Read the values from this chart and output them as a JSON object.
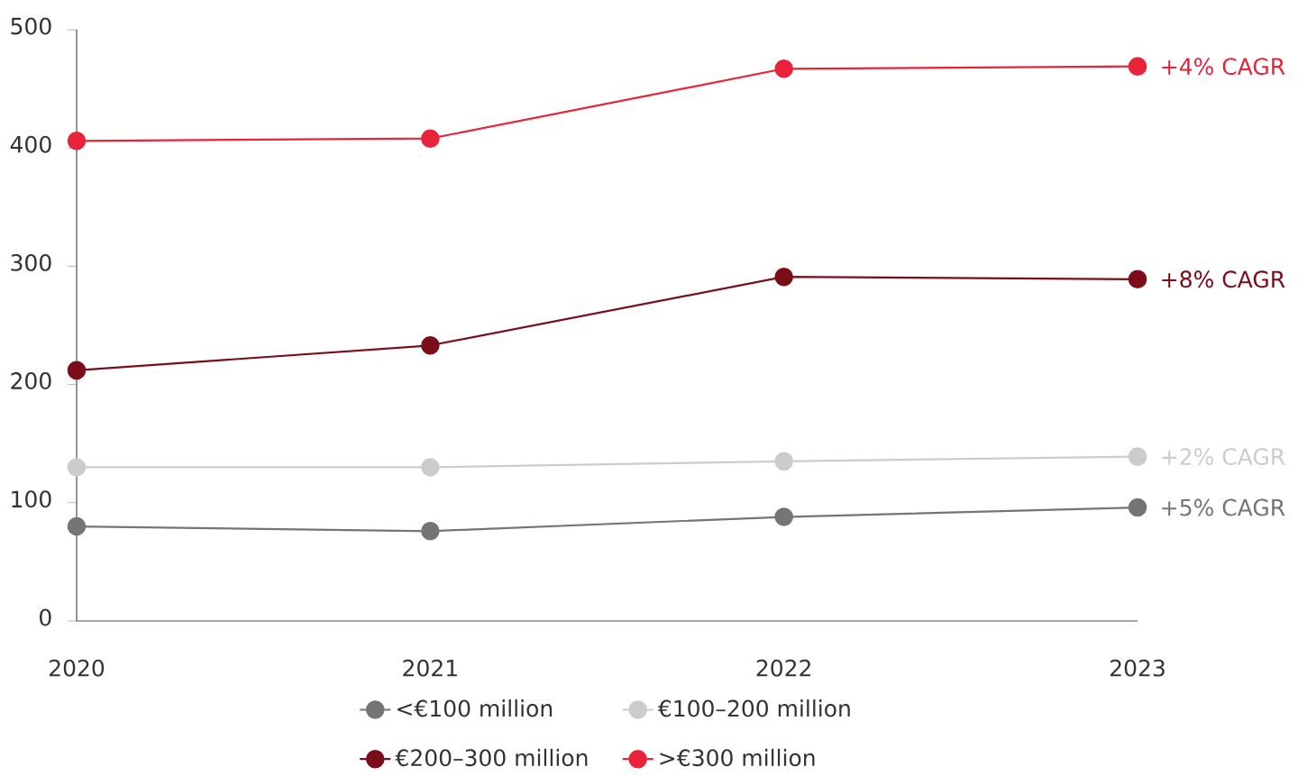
{
  "chart_data": {
    "type": "line",
    "categories": [
      "2020",
      "2021",
      "2022",
      "2023"
    ],
    "series": [
      {
        "name": "<€100 million",
        "color": "#757575",
        "values": [
          80,
          76,
          88,
          96
        ]
      },
      {
        "name": "€100–200 million",
        "color": "#cccccc",
        "values": [
          130,
          130,
          135,
          139
        ]
      },
      {
        "name": "€200–300 million",
        "color": "#7b0d1a",
        "values": [
          212,
          233,
          291,
          289
        ]
      },
      {
        "name": ">€300 million",
        "color": "#e8233a",
        "values": [
          406,
          408,
          467,
          469
        ]
      }
    ],
    "ylim": [
      0,
      500
    ],
    "yticks": [
      0,
      100,
      200,
      300,
      400,
      500
    ],
    "annotations": [
      {
        "text": "+4% CAGR",
        "x": "2023",
        "y": 469
      },
      {
        "text": "+8% CAGR",
        "x": "2023",
        "y": 289
      },
      {
        "text": "+2% CAGR",
        "x": "2023",
        "y": 139
      },
      {
        "text": "+5% CAGR",
        "x": "2023",
        "y": 96
      }
    ],
    "legend": "bottom",
    "marker": "circle",
    "line_style": "solid",
    "grid": false
  }
}
